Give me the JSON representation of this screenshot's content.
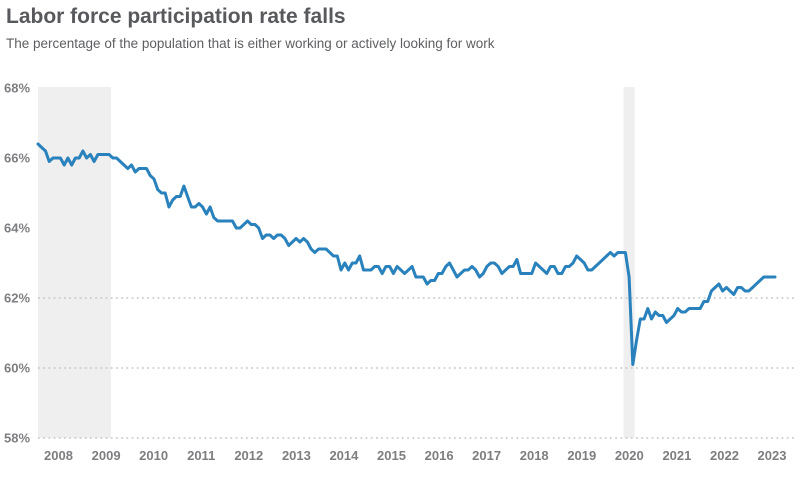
{
  "header": {
    "title": "Labor force participation rate falls",
    "subtitle": "The percentage of the population that is either working or actively looking for work"
  },
  "chart_data": {
    "type": "line",
    "title": "Labor force participation rate falls",
    "subtitle": "The percentage of the population that is either working or actively looking for work",
    "x_start": "2007-01",
    "x_end": "2023-06",
    "frequency": "monthly",
    "series": [
      {
        "name": "Labor force participation rate (%)",
        "values": [
          66.4,
          66.3,
          66.2,
          65.9,
          66.0,
          66.0,
          66.0,
          65.8,
          66.0,
          65.8,
          66.0,
          66.0,
          66.2,
          66.0,
          66.1,
          65.9,
          66.1,
          66.1,
          66.1,
          66.1,
          66.0,
          66.0,
          65.9,
          65.8,
          65.7,
          65.8,
          65.6,
          65.7,
          65.7,
          65.7,
          65.5,
          65.4,
          65.1,
          65.0,
          65.0,
          64.6,
          64.8,
          64.9,
          64.9,
          65.2,
          64.9,
          64.6,
          64.6,
          64.7,
          64.6,
          64.4,
          64.6,
          64.3,
          64.2,
          64.2,
          64.2,
          64.2,
          64.2,
          64.0,
          64.0,
          64.1,
          64.2,
          64.1,
          64.1,
          64.0,
          63.7,
          63.8,
          63.8,
          63.7,
          63.8,
          63.8,
          63.7,
          63.5,
          63.6,
          63.7,
          63.6,
          63.7,
          63.6,
          63.4,
          63.3,
          63.4,
          63.4,
          63.4,
          63.3,
          63.2,
          63.2,
          62.8,
          63.0,
          62.8,
          63.0,
          63.0,
          63.2,
          62.8,
          62.8,
          62.8,
          62.9,
          62.9,
          62.7,
          62.9,
          62.9,
          62.7,
          62.9,
          62.8,
          62.7,
          62.8,
          62.9,
          62.6,
          62.6,
          62.6,
          62.4,
          62.5,
          62.5,
          62.7,
          62.7,
          62.9,
          63.0,
          62.8,
          62.6,
          62.7,
          62.8,
          62.8,
          62.9,
          62.8,
          62.6,
          62.7,
          62.9,
          63.0,
          63.0,
          62.9,
          62.7,
          62.8,
          62.9,
          62.9,
          63.1,
          62.7,
          62.7,
          62.7,
          62.7,
          63.0,
          62.9,
          62.8,
          62.7,
          62.9,
          62.9,
          62.7,
          62.7,
          62.9,
          62.9,
          63.0,
          63.2,
          63.1,
          63.0,
          62.8,
          62.8,
          62.9,
          63.0,
          63.1,
          63.2,
          63.3,
          63.2,
          63.3,
          63.3,
          63.3,
          62.6,
          60.1,
          60.8,
          61.4,
          61.4,
          61.7,
          61.4,
          61.6,
          61.5,
          61.5,
          61.3,
          61.4,
          61.5,
          61.7,
          61.6,
          61.6,
          61.7,
          61.7,
          61.7,
          61.7,
          61.9,
          61.9,
          62.2,
          62.3,
          62.4,
          62.2,
          62.3,
          62.2,
          62.1,
          62.3,
          62.3,
          62.2,
          62.2,
          62.3,
          62.4,
          62.5,
          62.6,
          62.6,
          62.6,
          62.6
        ]
      }
    ],
    "ylim": [
      58,
      68
    ],
    "yticks": [
      {
        "value": 68,
        "label": "68%"
      },
      {
        "value": 66,
        "label": "66%"
      },
      {
        "value": 64,
        "label": "64%"
      },
      {
        "value": 62,
        "label": "62%"
      },
      {
        "value": 60,
        "label": "60%"
      },
      {
        "value": 58,
        "label": "58%"
      }
    ],
    "grid_values": [
      62,
      60,
      58
    ],
    "grid_style": "dotted",
    "xticks": [
      "2008",
      "2009",
      "2010",
      "2011",
      "2012",
      "2013",
      "2014",
      "2015",
      "2016",
      "2017",
      "2018",
      "2019",
      "2020",
      "2021",
      "2022",
      "2023"
    ],
    "recession_bands": [
      {
        "from_index": 0,
        "to_index": 19.5
      },
      {
        "from_index": 156.5,
        "to_index": 159.5
      }
    ],
    "legend": "none",
    "colors": {
      "line": "#2a82bd",
      "band": "#efefef",
      "grid": "#c5c5c7",
      "tick_text": "#7d7e81",
      "title": "#58595c",
      "subtitle": "#5e5f62"
    }
  }
}
